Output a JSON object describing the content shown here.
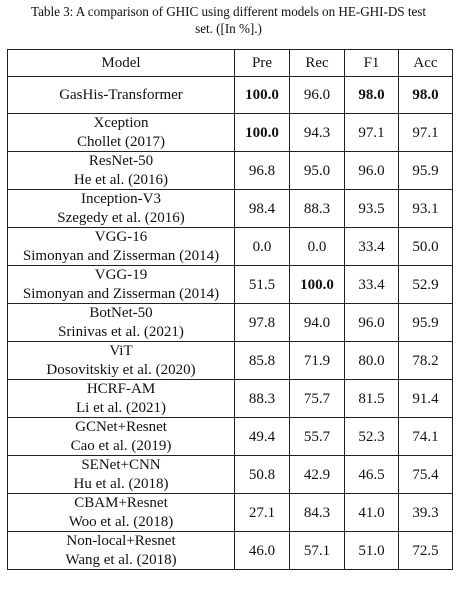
{
  "caption": {
    "line1": "Table 3: A comparison of GHIC using different models on HE-GHI-DS test",
    "line2": "set. ([In %].)"
  },
  "table": {
    "headers": [
      "Model",
      "Pre",
      "Rec",
      "F1",
      "Acc"
    ],
    "rows": [
      {
        "model": "GasHis-Transformer",
        "cite": "",
        "pre": "100.0",
        "rec": "96.0",
        "f1": "98.0",
        "acc": "98.0",
        "bold": [
          "pre",
          "f1",
          "acc"
        ]
      },
      {
        "model": "Xception",
        "cite": "Chollet (2017)",
        "pre": "100.0",
        "rec": "94.3",
        "f1": "97.1",
        "acc": "97.1",
        "bold": [
          "pre"
        ]
      },
      {
        "model": "ResNet-50",
        "cite": "He et al. (2016)",
        "pre": "96.8",
        "rec": "95.0",
        "f1": "96.0",
        "acc": "95.9",
        "bold": []
      },
      {
        "model": "Inception-V3",
        "cite": "Szegedy et al. (2016)",
        "pre": "98.4",
        "rec": "88.3",
        "f1": "93.5",
        "acc": "93.1",
        "bold": []
      },
      {
        "model": "VGG-16",
        "cite": "Simonyan and Zisserman (2014)",
        "pre": "0.0",
        "rec": "0.0",
        "f1": "33.4",
        "acc": "50.0",
        "bold": []
      },
      {
        "model": "VGG-19",
        "cite": "Simonyan and Zisserman (2014)",
        "pre": "51.5",
        "rec": "100.0",
        "f1": "33.4",
        "acc": "52.9",
        "bold": [
          "rec"
        ]
      },
      {
        "model": "BotNet-50",
        "cite": "Srinivas et al. (2021)",
        "pre": "97.8",
        "rec": "94.0",
        "f1": "96.0",
        "acc": "95.9",
        "bold": []
      },
      {
        "model": "ViT",
        "cite": "Dosovitskiy et al. (2020)",
        "pre": "85.8",
        "rec": "71.9",
        "f1": "80.0",
        "acc": "78.2",
        "bold": []
      },
      {
        "model": "HCRF-AM",
        "cite": "Li et al. (2021)",
        "pre": "88.3",
        "rec": "75.7",
        "f1": "81.5",
        "acc": "91.4",
        "bold": []
      },
      {
        "model": "GCNet+Resnet",
        "cite": "Cao et al. (2019)",
        "pre": "49.4",
        "rec": "55.7",
        "f1": "52.3",
        "acc": "74.1",
        "bold": []
      },
      {
        "model": "SENet+CNN",
        "cite": "Hu et al. (2018)",
        "pre": "50.8",
        "rec": "42.9",
        "f1": "46.5",
        "acc": "75.4",
        "bold": []
      },
      {
        "model": "CBAM+Resnet",
        "cite": "Woo et al. (2018)",
        "pre": "27.1",
        "rec": "84.3",
        "f1": "41.0",
        "acc": "39.3",
        "bold": []
      },
      {
        "model": "Non-local+Resnet",
        "cite": "Wang et al. (2018)",
        "pre": "46.0",
        "rec": "57.1",
        "f1": "51.0",
        "acc": "72.5",
        "bold": []
      }
    ]
  }
}
